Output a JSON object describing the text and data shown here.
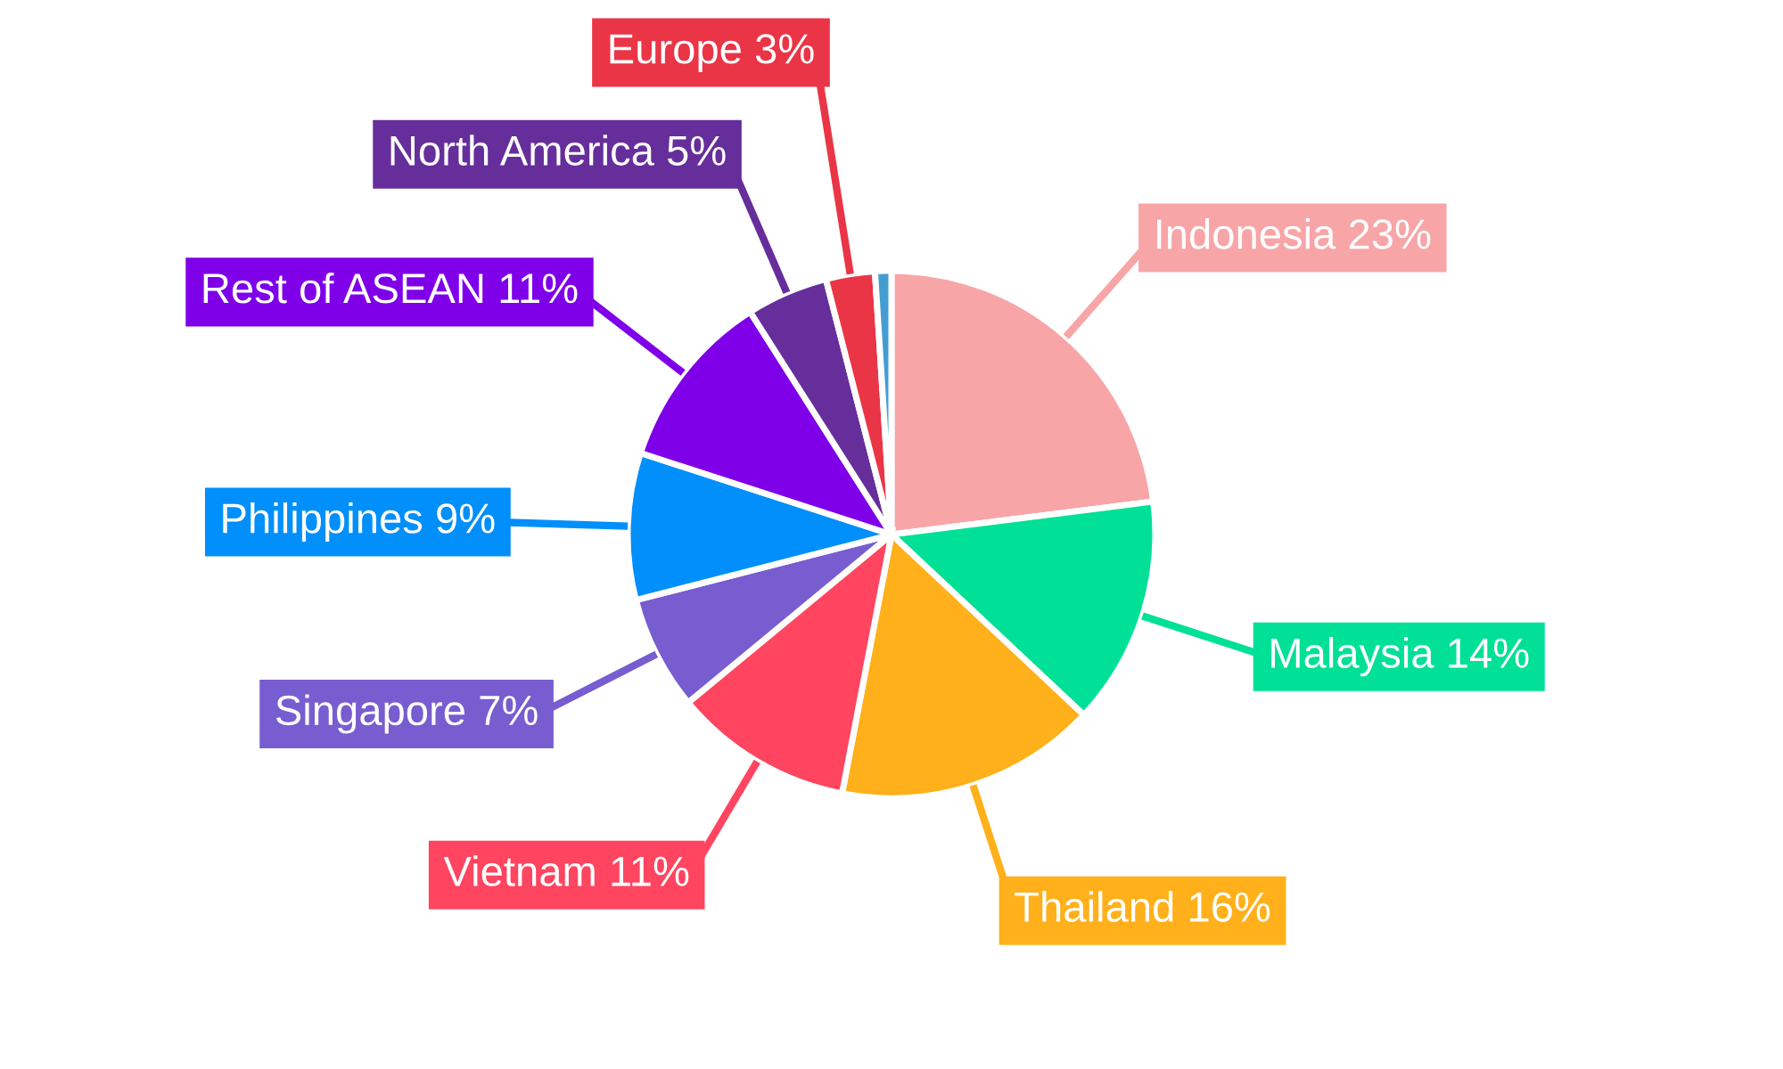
{
  "chart_data": {
    "type": "pie",
    "categories": [
      "Indonesia 23%",
      "Malaysia 14%",
      "Thailand 16%",
      "Vietnam 11%",
      "Singapore 7%",
      "Philippines 9%",
      "Rest of ASEAN 11%",
      "North America 5%",
      "Europe 3%",
      null
    ],
    "values": [
      23,
      14,
      16,
      11,
      7,
      9,
      11,
      5,
      3,
      1
    ],
    "colors": [
      "#f8a5a8",
      "#00e096",
      "#ffb01a",
      "#ff4560",
      "#775dd0",
      "#008ffb",
      "#7f00e8",
      "#662e9b",
      "#ea3546",
      "#449dd1"
    ],
    "legend": false
  }
}
